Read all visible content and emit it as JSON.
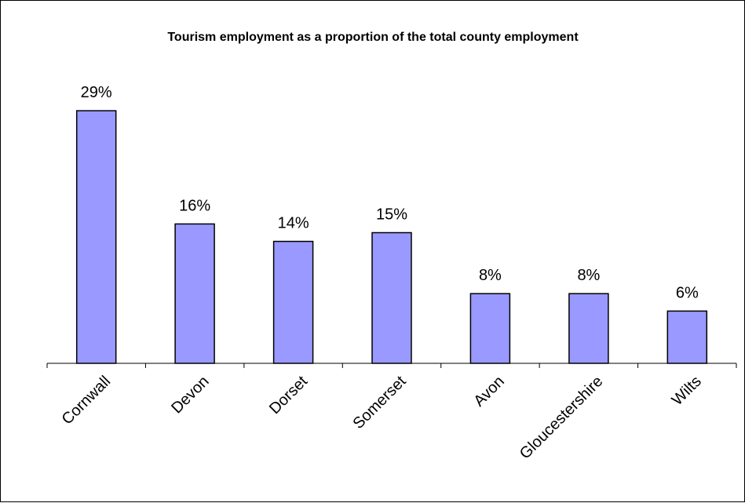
{
  "chart_data": {
    "type": "bar",
    "title": "Tourism employment as a proportion of the total county employment",
    "categories": [
      "Cornwall",
      "Devon",
      "Dorset",
      "Somerset",
      "Avon",
      "Gloucestershire",
      "Wilts"
    ],
    "values": [
      29,
      16,
      14,
      15,
      8,
      8,
      6
    ],
    "data_labels": [
      "29%",
      "16%",
      "14%",
      "15%",
      "8%",
      "8%",
      "6%"
    ],
    "unit": "%",
    "ylim": [
      0,
      30
    ],
    "grid": false,
    "legend": "none",
    "colors": {
      "bar_fill": "#9999FF",
      "bar_stroke": "#000000",
      "axis": "#000000",
      "background": "#FFFFFF"
    }
  }
}
